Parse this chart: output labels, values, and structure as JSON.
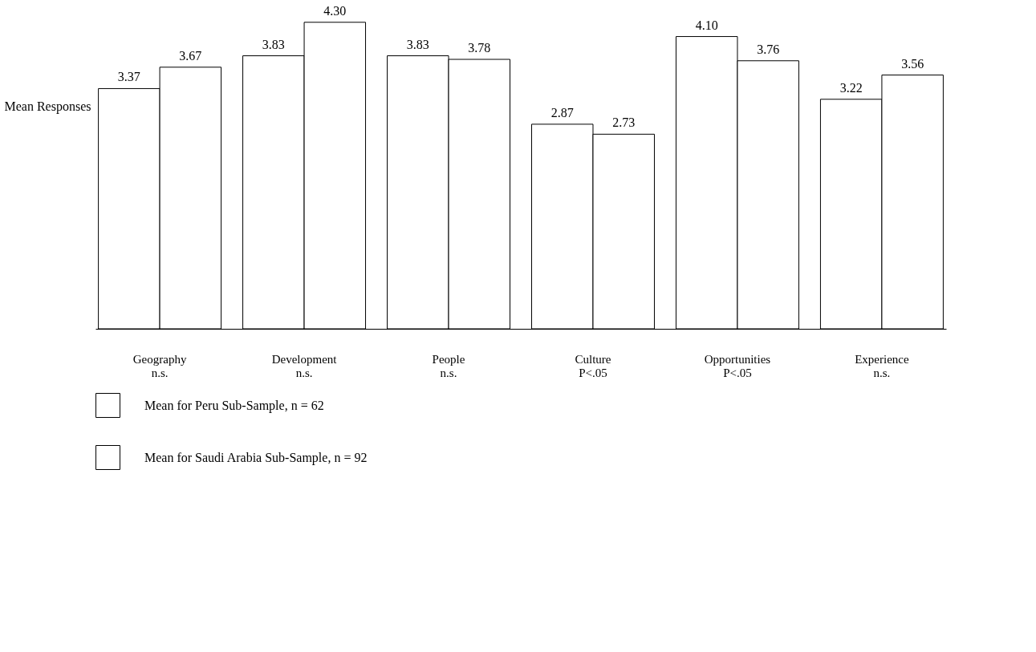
{
  "chart_data": {
    "type": "bar",
    "ylabel": "Mean Responses",
    "categories": [
      "Geography\nn.s.",
      "Development\nn.s.",
      "People\nn.s.",
      "Culture\nP<.05",
      "Opportunities\nP<.05",
      "Experience\nn.s."
    ],
    "series": [
      {
        "name": "Mean for Peru Sub-Sample, n = 62",
        "color": "#ffffff",
        "values": [
          3.37,
          3.83,
          3.83,
          2.87,
          4.1,
          3.22
        ],
        "value_labels": [
          "3.37",
          "3.83",
          "3.83",
          "2.87",
          "4.10",
          "3.22"
        ]
      },
      {
        "name": "Mean for Saudi Arabia Sub-Sample, n = 92",
        "color": "#ffffff",
        "values": [
          3.67,
          4.3,
          3.78,
          2.73,
          3.76,
          3.56
        ],
        "value_labels": [
          "3.67",
          "4.30",
          "3.78",
          "2.73",
          "3.76",
          "3.56"
        ]
      }
    ],
    "grid": false,
    "legend": "bottom"
  }
}
